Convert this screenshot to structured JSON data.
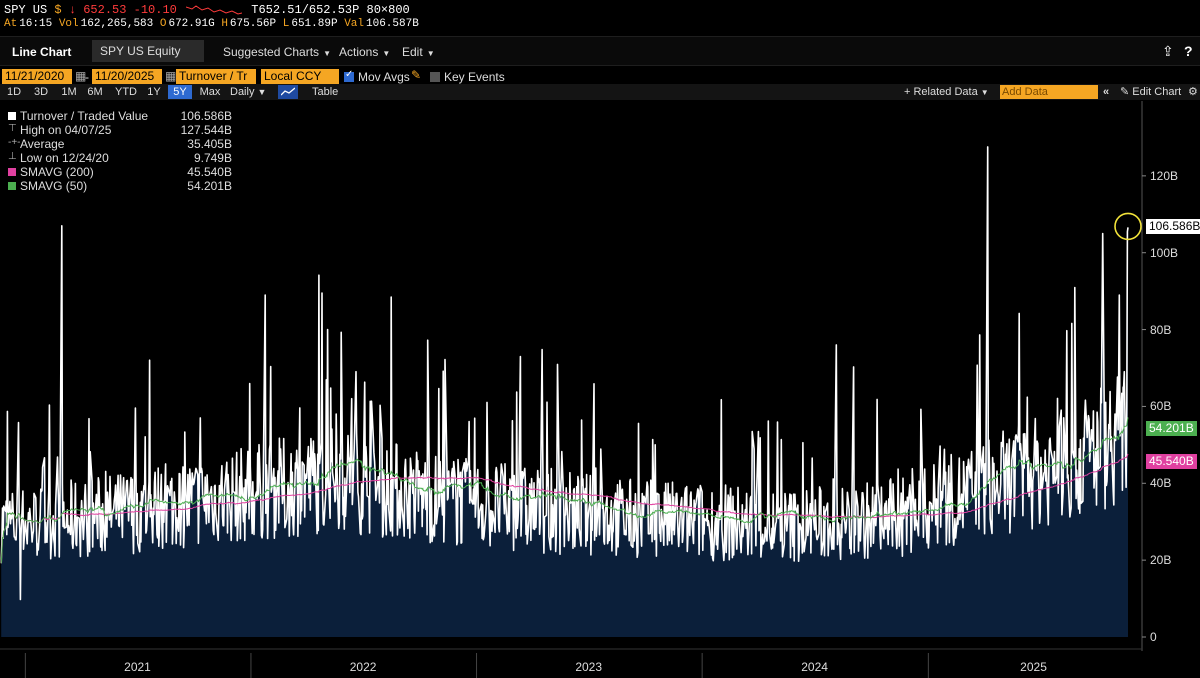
{
  "ticker": {
    "symbol": "SPY US",
    "currency_icon": "dollar-icon",
    "arrow": "↓",
    "price": "652.53",
    "change": "-10.10",
    "bid_ask": "T652.51/652.53P",
    "size": "80×800",
    "at_label": "At",
    "time": "16:15",
    "vol_label": "Vol",
    "volume": "162,265,583",
    "open_label": "O",
    "open": "672.91G",
    "high_label": "H",
    "high": "675.56P",
    "low_label": "L",
    "low": "651.89P",
    "val_label": "Val",
    "value": "106.587B"
  },
  "menubar": {
    "title": "Line Chart",
    "security": "SPY US Equity",
    "menus": [
      "Suggested Charts",
      "Actions",
      "Edit"
    ]
  },
  "params": {
    "start_date": "11/21/2020",
    "end_date": "11/20/2025",
    "field": "Turnover / Tr",
    "currency": "Local CCY",
    "mov_avgs": "Mov Avgs",
    "key_events": "Key Events"
  },
  "ranges": {
    "items": [
      "1D",
      "3D",
      "1M",
      "6M",
      "YTD",
      "1Y",
      "5Y",
      "Max"
    ],
    "active": "5Y",
    "frequency": "Daily",
    "table": "Table",
    "related": "+ Related Data",
    "add_data_placeholder": "Add Data",
    "edit_chart": "Edit Chart"
  },
  "legend": {
    "rows": [
      {
        "label": "Turnover / Traded Value",
        "value": "106.586B",
        "color": "#ffffff"
      },
      {
        "label": "High on 04/07/25",
        "value": "127.544B",
        "color": "#aaaaaa"
      },
      {
        "label": "Average",
        "value": "35.405B",
        "color": "#aaaaaa"
      },
      {
        "label": "Low on 12/24/20",
        "value": "9.749B",
        "color": "#aaaaaa"
      },
      {
        "label": "SMAVG (200)",
        "value": "45.540B",
        "color": "#e040a0"
      },
      {
        "label": "SMAVG (50)",
        "value": "54.201B",
        "color": "#4caf50"
      }
    ]
  },
  "chart_data": {
    "type": "area",
    "series": [
      {
        "name": "Turnover / Traded Value",
        "color": "#ffffff"
      },
      {
        "name": "SMAVG (200)",
        "color": "#e040a0"
      },
      {
        "name": "SMAVG (50)",
        "color": "#4caf50"
      }
    ],
    "x_labels": [
      "2021",
      "2022",
      "2023",
      "2024",
      "2025"
    ],
    "y_ticks": [
      "0",
      "20B",
      "40B",
      "60B",
      "80B",
      "100B",
      "120B"
    ],
    "ylim": [
      0,
      140
    ],
    "y_unit": "B",
    "last_values": {
      "turnover": "106.586B",
      "smavg50": "54.201B",
      "smavg200": "45.540B"
    },
    "peaks": [
      {
        "date": "2021-03-01",
        "value": 107
      },
      {
        "date": "2022-01-24",
        "value": 89
      },
      {
        "date": "2022-06-13",
        "value": 62
      },
      {
        "date": "2023-03-13",
        "value": 73
      },
      {
        "date": "2024-08-05",
        "value": 76
      },
      {
        "date": "2025-04-07",
        "value": 127.544
      },
      {
        "date": "2025-10-10",
        "value": 105
      },
      {
        "date": "2025-11-20",
        "value": 106.586
      }
    ],
    "low": {
      "date": "2020-12-24",
      "value": 9.749
    },
    "average": 35.405,
    "area_fill": "#0b1f3a",
    "grid": false
  }
}
